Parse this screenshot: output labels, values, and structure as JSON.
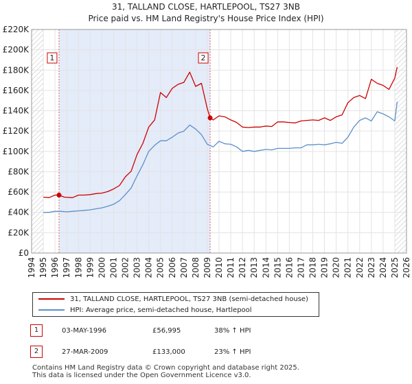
{
  "title": {
    "line1": "31, TALLAND CLOSE, HARTLEPOOL, TS27 3NB",
    "line2": "Price paid vs. HM Land Registry's House Price Index (HPI)"
  },
  "chart_data": {
    "type": "line",
    "title": "31, TALLAND CLOSE, HARTLEPOOL, TS27 3NB — Price paid vs. HM Land Registry's House Price Index (HPI)",
    "xlim": [
      1994,
      2026
    ],
    "ylim": [
      0,
      220000
    ],
    "x_ticks": [
      "1994",
      "1995",
      "1996",
      "1997",
      "1998",
      "1999",
      "2000",
      "2001",
      "2002",
      "2003",
      "2004",
      "2005",
      "2006",
      "2007",
      "2008",
      "2009",
      "2010",
      "2011",
      "2012",
      "2013",
      "2014",
      "2015",
      "2016",
      "2017",
      "2018",
      "2019",
      "2020",
      "2021",
      "2022",
      "2023",
      "2024",
      "2025",
      "2026"
    ],
    "y_ticks": [
      {
        "value": 0,
        "label": "£0"
      },
      {
        "value": 20000,
        "label": "£20K"
      },
      {
        "value": 40000,
        "label": "£40K"
      },
      {
        "value": 60000,
        "label": "£60K"
      },
      {
        "value": 80000,
        "label": "£80K"
      },
      {
        "value": 100000,
        "label": "£100K"
      },
      {
        "value": 120000,
        "label": "£120K"
      },
      {
        "value": 140000,
        "label": "£140K"
      },
      {
        "value": 160000,
        "label": "£160K"
      },
      {
        "value": 180000,
        "label": "£180K"
      },
      {
        "value": 200000,
        "label": "£200K"
      },
      {
        "value": 220000,
        "label": "£220K"
      }
    ],
    "series": [
      {
        "name": "31, TALLAND CLOSE, HARTLEPOOL, TS27 3NB (semi-detached house)",
        "color": "#cc0000",
        "x": [
          1995.0,
          1995.5,
          1996.0,
          1996.34,
          1996.8,
          1997.5,
          1998.0,
          1998.5,
          1999.0,
          1999.5,
          2000.0,
          2000.5,
          2001.0,
          2001.5,
          2002.0,
          2002.5,
          2003.0,
          2003.5,
          2004.0,
          2004.5,
          2005.0,
          2005.5,
          2006.0,
          2006.5,
          2007.0,
          2007.5,
          2008.0,
          2008.5,
          2009.0,
          2009.24,
          2009.5,
          2010.0,
          2010.5,
          2011.0,
          2011.5,
          2012.0,
          2012.5,
          2013.0,
          2013.5,
          2014.0,
          2014.5,
          2015.0,
          2015.5,
          2016.0,
          2016.5,
          2017.0,
          2017.5,
          2018.0,
          2018.5,
          2019.0,
          2019.5,
          2020.0,
          2020.5,
          2021.0,
          2021.5,
          2022.0,
          2022.5,
          2023.0,
          2023.5,
          2024.0,
          2024.5,
          2025.0,
          2025.2
        ],
        "y": [
          55000,
          54500,
          57000,
          56995,
          55000,
          54500,
          57000,
          57000,
          57500,
          58500,
          59000,
          60500,
          63000,
          66500,
          75000,
          80500,
          97000,
          108000,
          124000,
          131000,
          158000,
          153000,
          162000,
          166000,
          168000,
          178000,
          164000,
          167000,
          142000,
          133000,
          131000,
          135000,
          134000,
          131000,
          128500,
          124000,
          123500,
          124000,
          124000,
          125000,
          124500,
          129000,
          129000,
          128500,
          128000,
          130000,
          130500,
          131000,
          130500,
          133000,
          130500,
          134000,
          136000,
          148000,
          153000,
          155000,
          152000,
          171000,
          167000,
          165000,
          161000,
          172000,
          183000
        ]
      },
      {
        "name": "HPI: Average price, semi-detached house, Hartlepool",
        "color": "#5b8fc9",
        "x": [
          1995.0,
          1995.5,
          1996.0,
          1996.5,
          1997.0,
          1997.5,
          1998.0,
          1998.5,
          1999.0,
          1999.5,
          2000.0,
          2000.5,
          2001.0,
          2001.5,
          2002.0,
          2002.5,
          2003.0,
          2003.5,
          2004.0,
          2004.5,
          2005.0,
          2005.5,
          2006.0,
          2006.5,
          2007.0,
          2007.5,
          2008.0,
          2008.5,
          2009.0,
          2009.5,
          2010.0,
          2010.5,
          2011.0,
          2011.5,
          2012.0,
          2012.5,
          2013.0,
          2013.5,
          2014.0,
          2014.5,
          2015.0,
          2015.5,
          2016.0,
          2016.5,
          2017.0,
          2017.5,
          2018.0,
          2018.5,
          2019.0,
          2019.5,
          2020.0,
          2020.5,
          2021.0,
          2021.5,
          2022.0,
          2022.5,
          2023.0,
          2023.5,
          2024.0,
          2024.5,
          2025.0,
          2025.2
        ],
        "y": [
          40000,
          40000,
          41000,
          41000,
          40500,
          41000,
          41500,
          42000,
          42500,
          43500,
          44500,
          46000,
          48000,
          51500,
          57500,
          64000,
          76000,
          87000,
          100000,
          106000,
          110500,
          110500,
          114000,
          118000,
          120000,
          126000,
          122000,
          116500,
          107000,
          104500,
          110000,
          107500,
          107000,
          104500,
          100000,
          101000,
          100000,
          101000,
          102000,
          101500,
          103000,
          103000,
          103000,
          103500,
          103500,
          106500,
          106500,
          107000,
          106500,
          107500,
          109000,
          108000,
          114000,
          124000,
          130500,
          133000,
          130000,
          139000,
          137000,
          134000,
          130000,
          149000
        ]
      }
    ],
    "sales": [
      {
        "label": "1",
        "x": 1996.34,
        "y": 56995
      },
      {
        "label": "2",
        "x": 2009.24,
        "y": 133000
      }
    ],
    "shaded_region": [
      1996.34,
      2009.24
    ],
    "future_hatch_from": 2025.0
  },
  "legend": {
    "property_label": "31, TALLAND CLOSE, HARTLEPOOL, TS27 3NB (semi-detached house)",
    "hpi_label": "HPI: Average price, semi-detached house, Hartlepool",
    "property_color": "#cc0000",
    "hpi_color": "#5b8fc9"
  },
  "sales": [
    {
      "num": "1",
      "date": "03-MAY-1996",
      "price": "£56,995",
      "hpi": "38% ↑ HPI"
    },
    {
      "num": "2",
      "date": "27-MAR-2009",
      "price": "£133,000",
      "hpi": "23% ↑ HPI"
    }
  ],
  "footer": {
    "line1": "Contains HM Land Registry data © Crown copyright and database right 2025.",
    "line2": "This data is licensed under the Open Government Licence v3.0."
  }
}
